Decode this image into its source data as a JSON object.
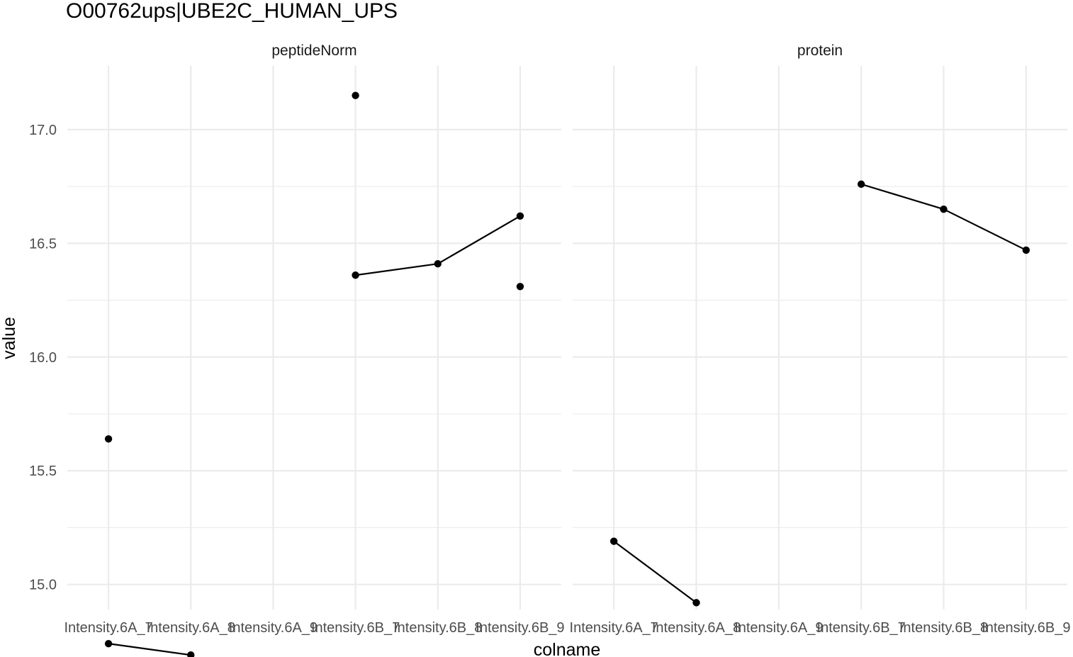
{
  "chart_data": {
    "type": "line",
    "title": "O00762ups|UBE2C_HUMAN_UPS",
    "xlabel": "colname",
    "ylabel": "value",
    "categories": [
      "Intensity.6A_7",
      "Intensity.6A_8",
      "Intensity.6A_9",
      "Intensity.6B_7",
      "Intensity.6B_8",
      "Intensity.6B_9"
    ],
    "ylim": [
      14.89,
      17.28
    ],
    "yticks": [
      "15.0",
      "15.5",
      "16.0",
      "16.5",
      "17.0"
    ],
    "grid": true,
    "legend": "none",
    "panels": [
      {
        "name": "peptideNorm",
        "series": [
          {
            "values": [
              14.74,
              14.69,
              null,
              16.36,
              16.41,
              16.62
            ]
          },
          {
            "values": [
              15.64,
              null,
              null,
              17.15,
              null,
              16.31
            ]
          }
        ]
      },
      {
        "name": "protein",
        "series": [
          {
            "values": [
              15.19,
              14.92,
              null,
              16.76,
              16.65,
              16.47
            ]
          }
        ]
      }
    ]
  }
}
